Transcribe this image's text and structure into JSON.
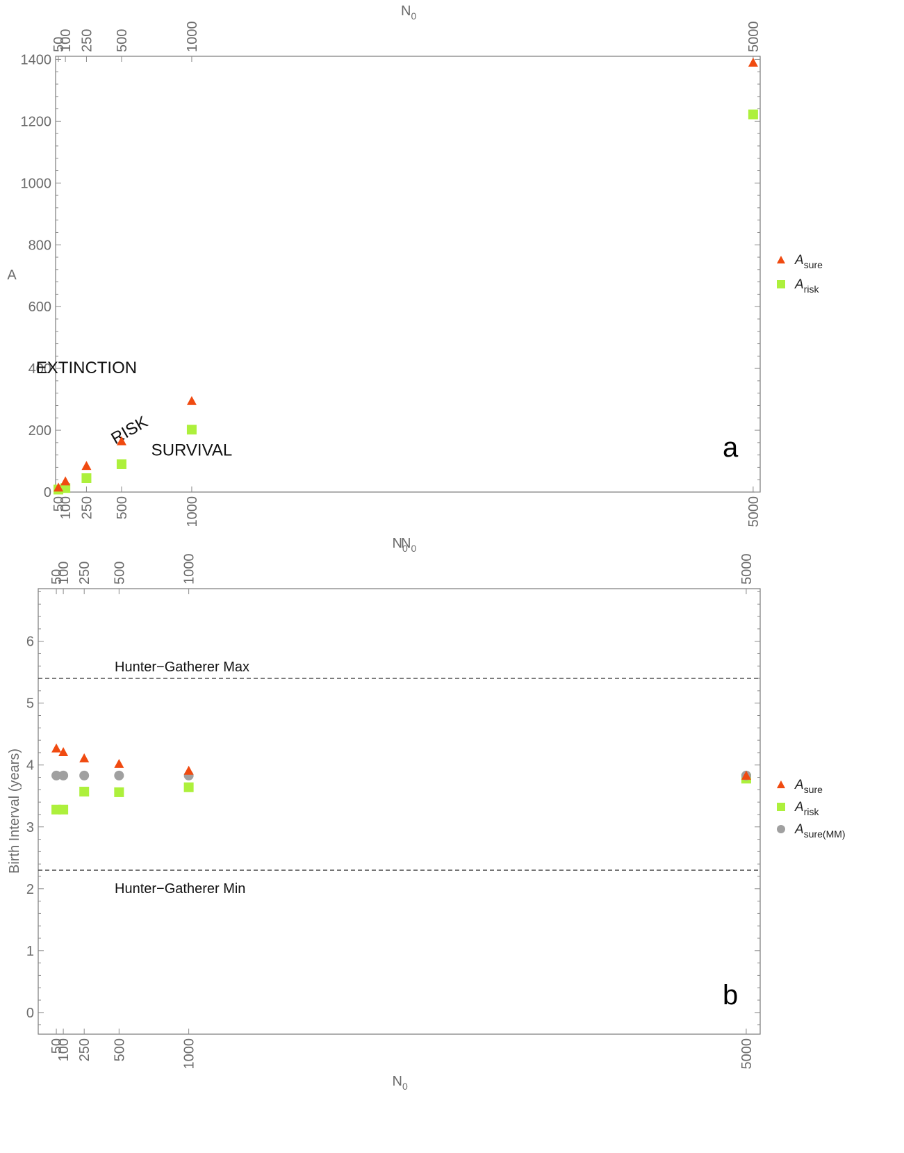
{
  "chart_data": [
    {
      "type": "scatter",
      "panel_label": "a",
      "xlabel_top": "N",
      "xlabel_top_sub": "0",
      "xlabel_bottom": "N",
      "xlabel_bottom_sub": "0",
      "ylabel": "A",
      "x_ticks": [
        "50",
        "100",
        "250",
        "500",
        "1000",
        "5000"
      ],
      "y_ticks": [
        "0",
        "200",
        "400",
        "600",
        "800",
        "1000",
        "1200",
        "1400"
      ],
      "xlim": [
        30,
        5050
      ],
      "ylim": [
        0,
        1410
      ],
      "grid": false,
      "legend_position": "right",
      "series": [
        {
          "name": "A",
          "name_sub": "sure",
          "marker": "triangle",
          "color": "#f04a10",
          "points": [
            [
              50,
              15
            ],
            [
              100,
              35
            ],
            [
              250,
              85
            ],
            [
              500,
              165
            ],
            [
              1000,
              295
            ],
            [
              5000,
              1390
            ]
          ]
        },
        {
          "name": "A",
          "name_sub": "risk",
          "marker": "square",
          "color": "#adf03c",
          "points": [
            [
              50,
              8
            ],
            [
              100,
              13
            ],
            [
              250,
              45
            ],
            [
              500,
              90
            ],
            [
              1000,
              202
            ],
            [
              5000,
              1222
            ]
          ]
        }
      ],
      "annotations": [
        {
          "text": "EXTINCTION",
          "x": 250,
          "y": 385
        },
        {
          "text": "RISK",
          "x": 575,
          "y": 185,
          "rotate": -30
        },
        {
          "text": "SURVIVAL",
          "x": 1000,
          "y": 118
        }
      ]
    },
    {
      "type": "scatter",
      "panel_label": "b",
      "xlabel_top": "N",
      "xlabel_top_sub": "0",
      "xlabel_bottom": "N",
      "xlabel_bottom_sub": "0",
      "ylabel": "Birth Interval (years)",
      "x_ticks": [
        "50",
        "100",
        "250",
        "500",
        "1000",
        "5000"
      ],
      "y_ticks": [
        "0",
        "1",
        "2",
        "3",
        "4",
        "5",
        "6"
      ],
      "xlim": [
        -80,
        5100
      ],
      "ylim": [
        -0.35,
        6.85
      ],
      "grid": false,
      "legend_position": "right",
      "reference_lines": [
        {
          "label": "Hunter−Gatherer Max",
          "y": 5.4
        },
        {
          "label": "Hunter−Gatherer Min",
          "y": 2.3
        }
      ],
      "series": [
        {
          "name": "A",
          "name_sub": "sure",
          "marker": "triangle",
          "color": "#f04a10",
          "points": [
            [
              50,
              4.27
            ],
            [
              100,
              4.21
            ],
            [
              250,
              4.11
            ],
            [
              500,
              4.02
            ],
            [
              1000,
              3.91
            ],
            [
              5000,
              3.83
            ]
          ]
        },
        {
          "name": "A",
          "name_sub": "risk",
          "marker": "square",
          "color": "#adf03c",
          "points": [
            [
              50,
              3.28
            ],
            [
              100,
              3.28
            ],
            [
              250,
              3.57
            ],
            [
              500,
              3.56
            ],
            [
              1000,
              3.64
            ],
            [
              5000,
              3.78
            ]
          ]
        },
        {
          "name": "A",
          "name_sub": "sure(MM)",
          "marker": "circle",
          "color": "#a0a0a0",
          "points": [
            [
              50,
              3.83
            ],
            [
              100,
              3.83
            ],
            [
              250,
              3.83
            ],
            [
              500,
              3.83
            ],
            [
              1000,
              3.83
            ],
            [
              5000,
              3.83
            ]
          ]
        }
      ]
    }
  ]
}
